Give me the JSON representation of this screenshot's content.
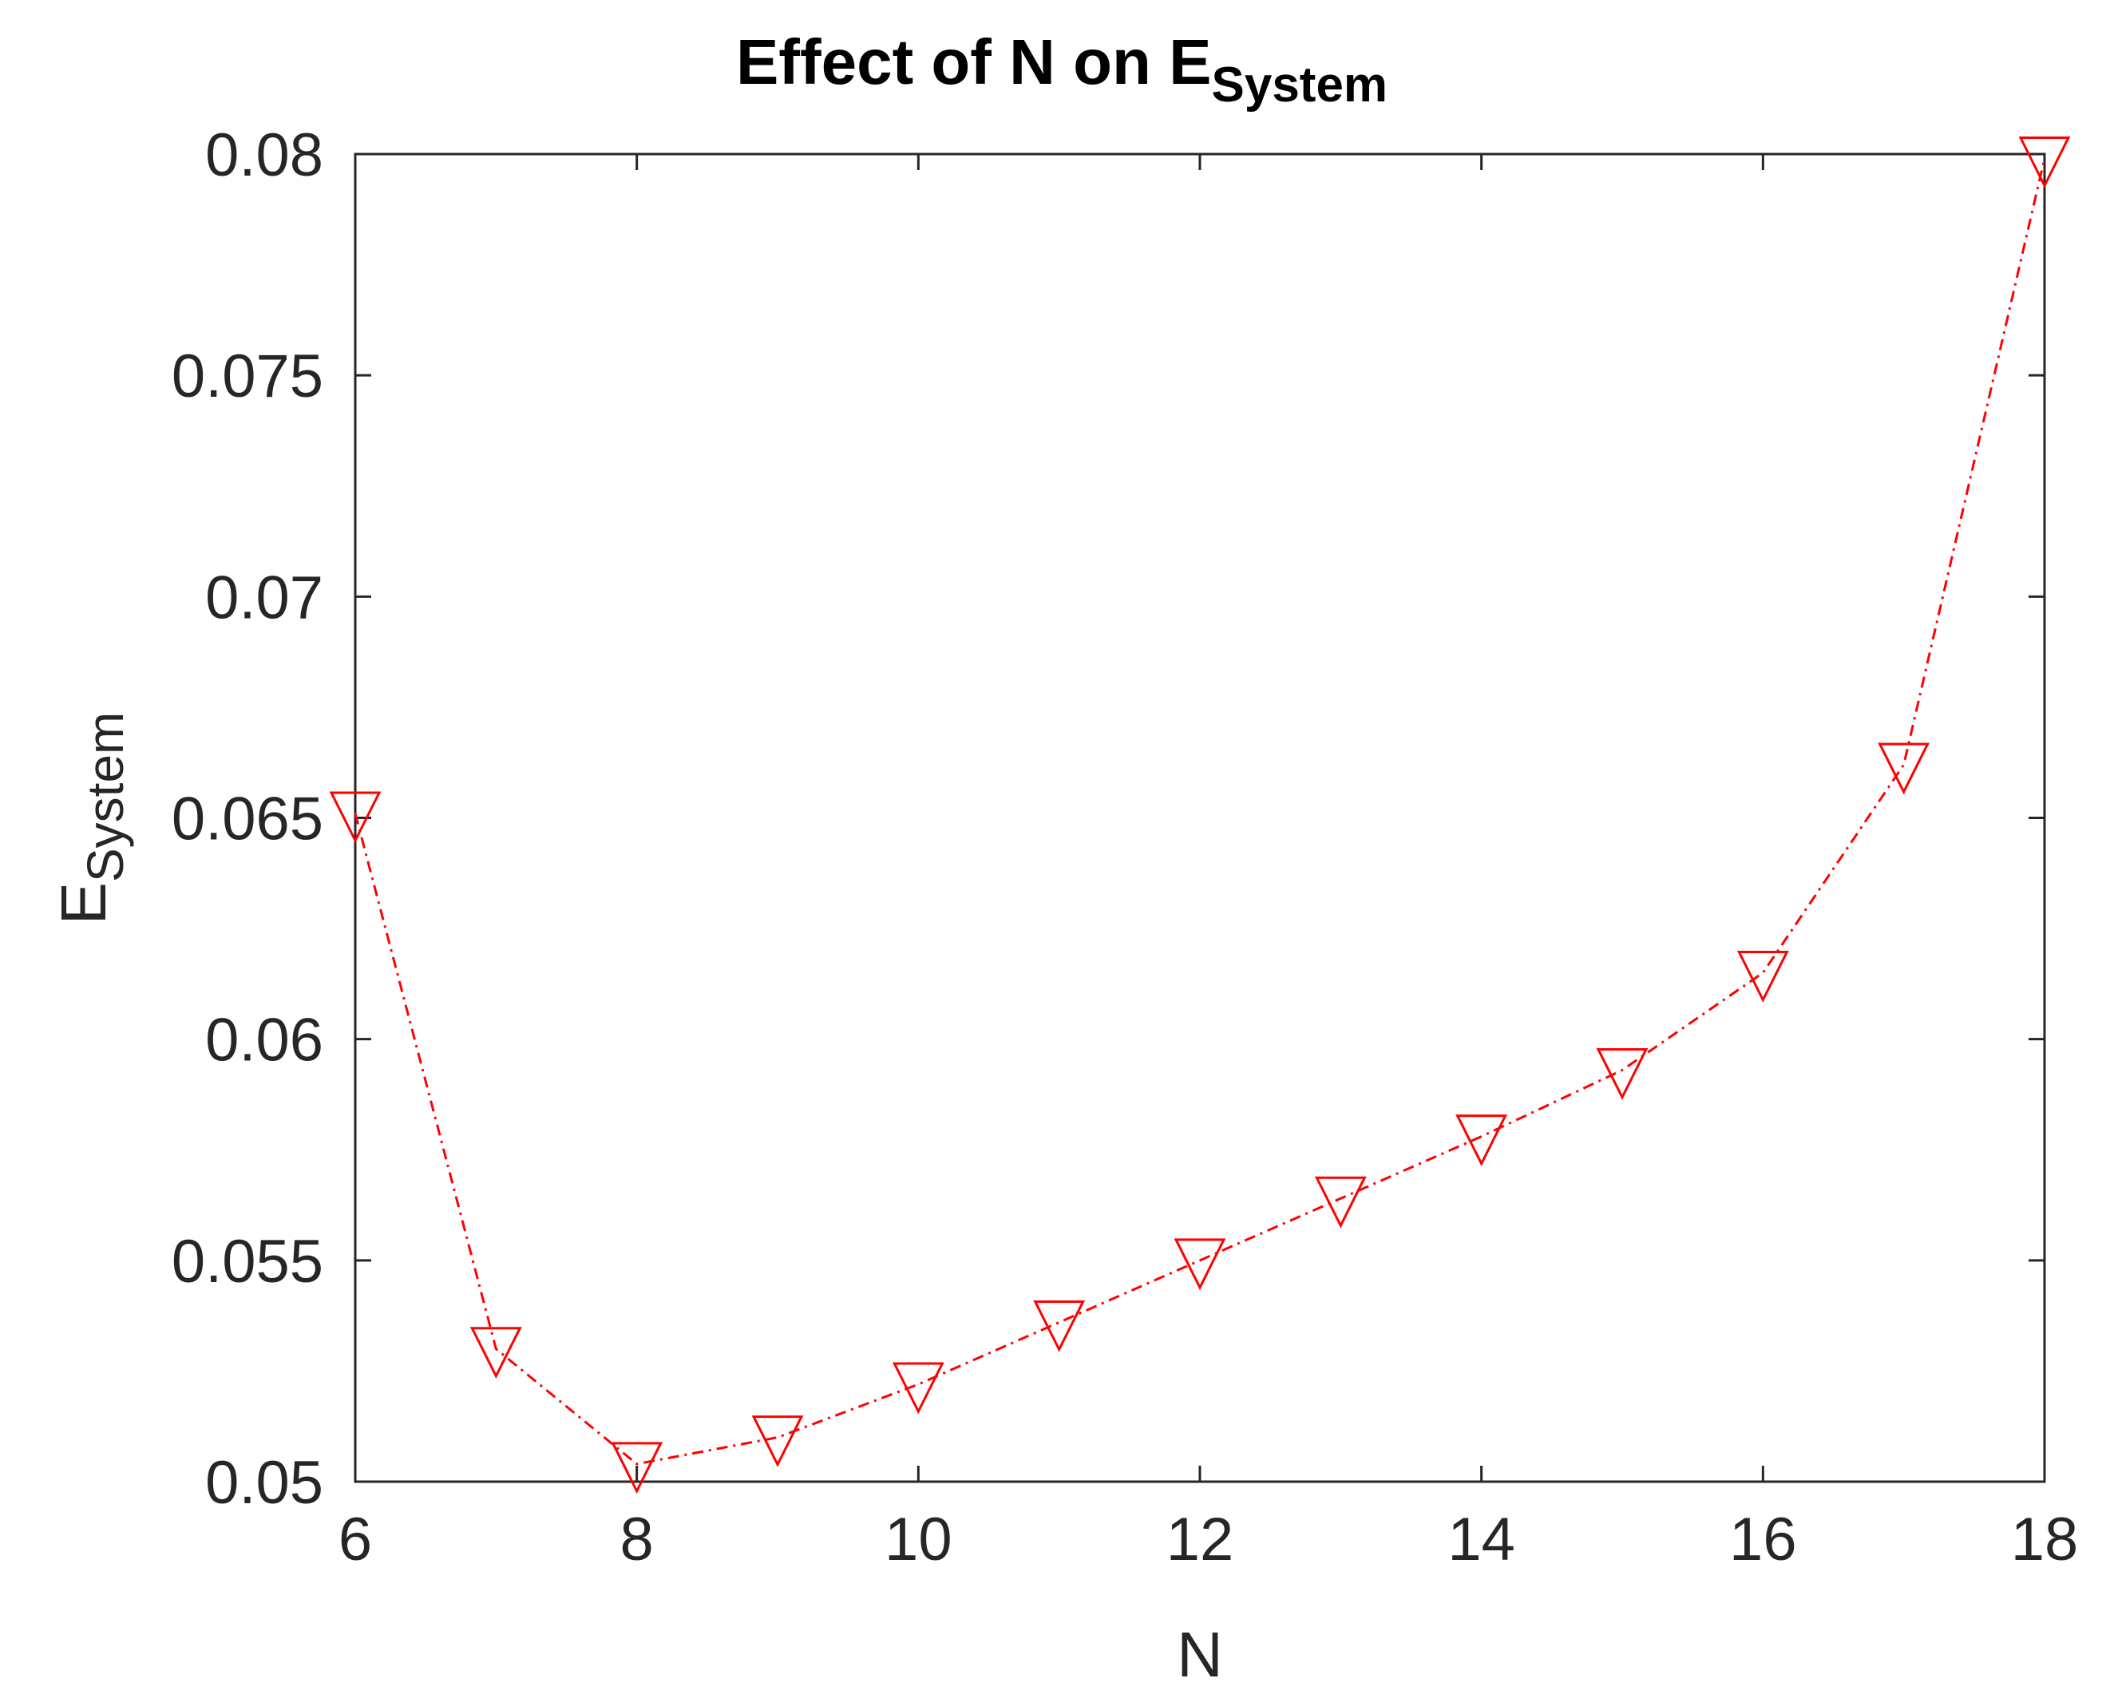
{
  "chart_data": {
    "type": "line",
    "title": "Effect of N on E",
    "title_subscript": "System",
    "xlabel": "N",
    "ylabel": "E",
    "ylabel_subscript": "System",
    "xlim": [
      6,
      18
    ],
    "ylim": [
      0.05,
      0.08
    ],
    "xticks": [
      6,
      8,
      10,
      12,
      14,
      16,
      18
    ],
    "yticks": [
      0.05,
      0.055,
      0.06,
      0.065,
      0.07,
      0.075,
      0.08
    ],
    "ytick_labels": [
      "0.05",
      "0.055",
      "0.06",
      "0.065",
      "0.07",
      "0.075",
      "0.08"
    ],
    "grid": false,
    "series": [
      {
        "name": "E_System",
        "color": "#ff0000",
        "line_style": "dash-dot",
        "marker": "downward-triangle",
        "x": [
          6,
          7,
          8,
          9,
          10,
          11,
          12,
          13,
          14,
          15,
          16,
          17,
          18
        ],
        "values": [
          0.0651,
          0.053,
          0.0504,
          0.051,
          0.0522,
          0.0536,
          0.055,
          0.0564,
          0.0578,
          0.0593,
          0.0615,
          0.0662,
          0.0799
        ]
      }
    ]
  }
}
